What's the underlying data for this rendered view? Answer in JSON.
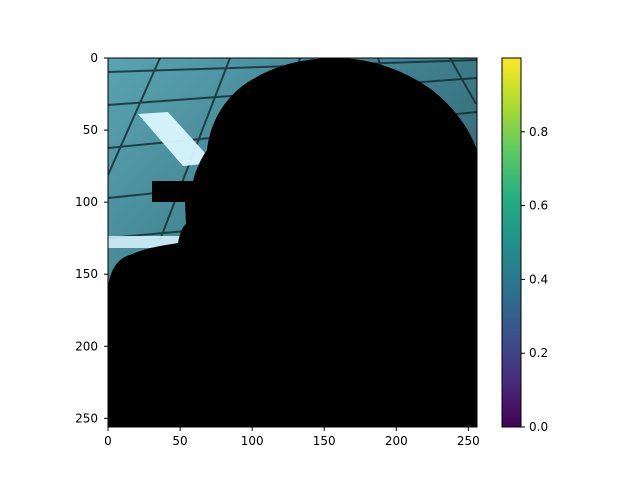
{
  "chart_data": {
    "type": "heatmap",
    "title": "",
    "xlabel": "",
    "ylabel": "",
    "xlim": [
      0,
      256
    ],
    "ylim": [
      256,
      0
    ],
    "x_ticks": [
      0,
      50,
      100,
      150,
      200,
      250
    ],
    "y_ticks": [
      0,
      50,
      100,
      150,
      200,
      250
    ],
    "colorbar": {
      "colormap": "viridis",
      "range": [
        0.0,
        1.0
      ],
      "ticks": [
        0.0,
        0.2,
        0.4,
        0.6,
        0.8
      ],
      "tick_labels": [
        "0.0",
        "0.2",
        "0.4",
        "0.6",
        "0.8"
      ]
    },
    "image_description_colors": {
      "background_teal": "#4e8c9a",
      "ceiling_light": "#d7f4ff",
      "silhouette": "#000000"
    }
  }
}
